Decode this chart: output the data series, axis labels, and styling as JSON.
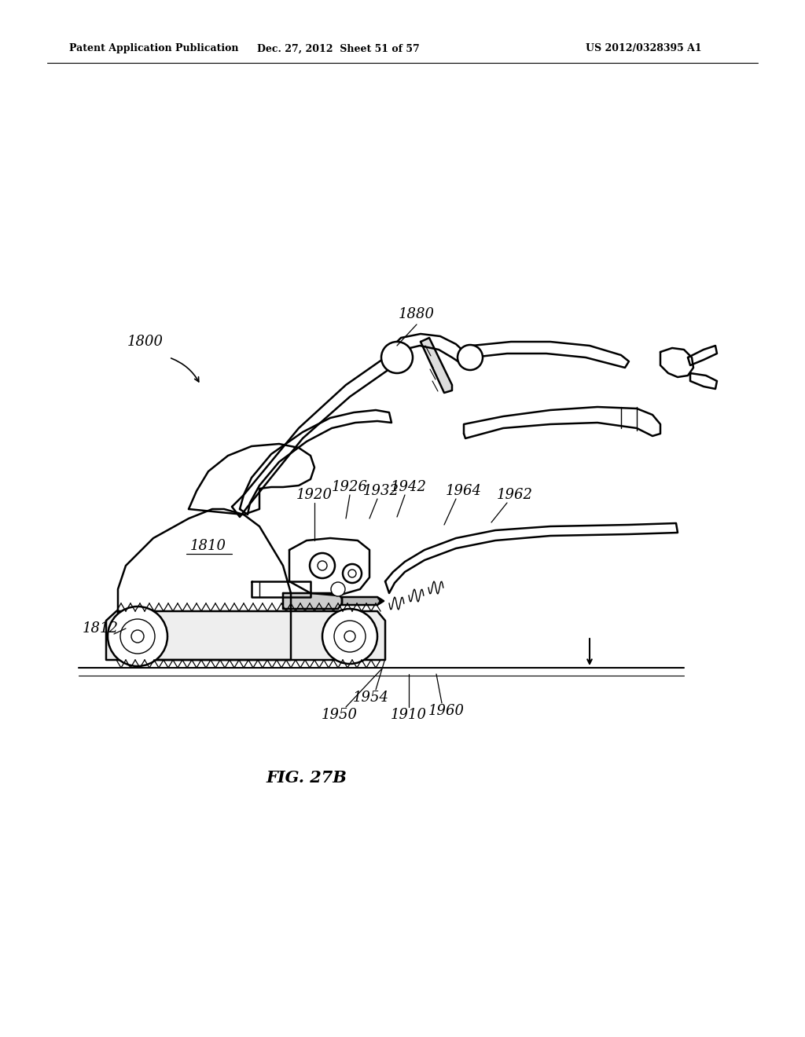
{
  "bg_color": "#ffffff",
  "line_color": "#000000",
  "header_left": "Patent Application Publication",
  "header_mid": "Dec. 27, 2012  Sheet 51 of 57",
  "header_right": "US 2012/0328395 A1",
  "figure_label": "FIG. 27B"
}
